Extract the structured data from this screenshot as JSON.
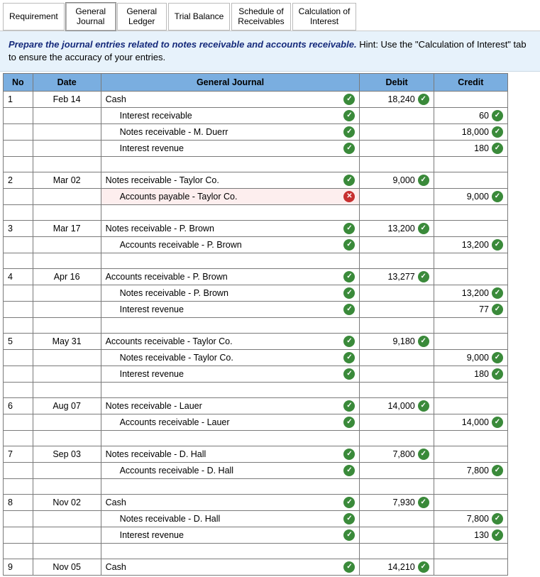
{
  "tabs": [
    {
      "label": "Requirement",
      "active": false
    },
    {
      "label": "General\nJournal",
      "active": true
    },
    {
      "label": "General\nLedger",
      "active": false
    },
    {
      "label": "Trial Balance",
      "active": false
    },
    {
      "label": "Schedule of\nReceivables",
      "active": false
    },
    {
      "label": "Calculation of\nInterest",
      "active": false
    }
  ],
  "instructions": {
    "bold": "Prepare the journal entries related to notes receivable and accounts receivable.",
    "rest": " Hint:  Use the \"Calculation of Interest\" tab to ensure the accuracy of your entries."
  },
  "headers": {
    "no": "No",
    "date": "Date",
    "journal": "General Journal",
    "debit": "Debit",
    "credit": "Credit"
  },
  "rows": [
    {
      "no": "1",
      "date": "Feb 14",
      "desc": "Cash",
      "indent": false,
      "status": "ok",
      "debit": "18,240",
      "debit_status": "ok",
      "credit": "",
      "credit_status": ""
    },
    {
      "no": "",
      "date": "",
      "desc": "Interest receivable",
      "indent": true,
      "status": "ok",
      "debit": "",
      "debit_status": "",
      "credit": "60",
      "credit_status": "ok"
    },
    {
      "no": "",
      "date": "",
      "desc": "Notes receivable - M. Duerr",
      "indent": true,
      "status": "ok",
      "debit": "",
      "debit_status": "",
      "credit": "18,000",
      "credit_status": "ok"
    },
    {
      "no": "",
      "date": "",
      "desc": "Interest revenue",
      "indent": true,
      "status": "ok",
      "debit": "",
      "debit_status": "",
      "credit": "180",
      "credit_status": "ok"
    },
    {
      "spacer": true
    },
    {
      "no": "2",
      "date": "Mar 02",
      "desc": "Notes receivable - Taylor Co.",
      "indent": false,
      "status": "ok",
      "debit": "9,000",
      "debit_status": "ok",
      "credit": "",
      "credit_status": ""
    },
    {
      "no": "",
      "date": "",
      "desc": "Accounts payable - Taylor Co.",
      "indent": true,
      "status": "err",
      "debit": "",
      "debit_status": "",
      "credit": "9,000",
      "credit_status": "ok",
      "rowError": true
    },
    {
      "spacer": true
    },
    {
      "no": "3",
      "date": "Mar 17",
      "desc": "Notes receivable - P. Brown",
      "indent": false,
      "status": "ok",
      "debit": "13,200",
      "debit_status": "ok",
      "credit": "",
      "credit_status": ""
    },
    {
      "no": "",
      "date": "",
      "desc": "Accounts receivable - P. Brown",
      "indent": true,
      "status": "ok",
      "debit": "",
      "debit_status": "",
      "credit": "13,200",
      "credit_status": "ok"
    },
    {
      "spacer": true
    },
    {
      "no": "4",
      "date": "Apr 16",
      "desc": "Accounts receivable - P. Brown",
      "indent": false,
      "status": "ok",
      "debit": "13,277",
      "debit_status": "ok",
      "credit": "",
      "credit_status": ""
    },
    {
      "no": "",
      "date": "",
      "desc": "Notes receivable - P. Brown",
      "indent": true,
      "status": "ok",
      "debit": "",
      "debit_status": "",
      "credit": "13,200",
      "credit_status": "ok"
    },
    {
      "no": "",
      "date": "",
      "desc": "Interest revenue",
      "indent": true,
      "status": "ok",
      "debit": "",
      "debit_status": "",
      "credit": "77",
      "credit_status": "ok"
    },
    {
      "spacer": true
    },
    {
      "no": "5",
      "date": "May 31",
      "desc": "Accounts receivable - Taylor Co.",
      "indent": false,
      "status": "ok",
      "debit": "9,180",
      "debit_status": "ok",
      "credit": "",
      "credit_status": ""
    },
    {
      "no": "",
      "date": "",
      "desc": "Notes receivable - Taylor Co.",
      "indent": true,
      "status": "ok",
      "debit": "",
      "debit_status": "",
      "credit": "9,000",
      "credit_status": "ok"
    },
    {
      "no": "",
      "date": "",
      "desc": "Interest revenue",
      "indent": true,
      "status": "ok",
      "debit": "",
      "debit_status": "",
      "credit": "180",
      "credit_status": "ok"
    },
    {
      "spacer": true
    },
    {
      "no": "6",
      "date": "Aug 07",
      "desc": "Notes receivable - Lauer",
      "indent": false,
      "status": "ok",
      "debit": "14,000",
      "debit_status": "ok",
      "credit": "",
      "credit_status": ""
    },
    {
      "no": "",
      "date": "",
      "desc": "Accounts receivable - Lauer",
      "indent": true,
      "status": "ok",
      "debit": "",
      "debit_status": "",
      "credit": "14,000",
      "credit_status": "ok"
    },
    {
      "spacer": true
    },
    {
      "no": "7",
      "date": "Sep 03",
      "desc": "Notes receivable - D. Hall",
      "indent": false,
      "status": "ok",
      "debit": "7,800",
      "debit_status": "ok",
      "credit": "",
      "credit_status": ""
    },
    {
      "no": "",
      "date": "",
      "desc": "Accounts receivable - D. Hall",
      "indent": true,
      "status": "ok",
      "debit": "",
      "debit_status": "",
      "credit": "7,800",
      "credit_status": "ok"
    },
    {
      "spacer": true
    },
    {
      "no": "8",
      "date": "Nov 02",
      "desc": "Cash",
      "indent": false,
      "status": "ok",
      "debit": "7,930",
      "debit_status": "ok",
      "credit": "",
      "credit_status": ""
    },
    {
      "no": "",
      "date": "",
      "desc": "Notes receivable - D. Hall",
      "indent": true,
      "status": "ok",
      "debit": "",
      "debit_status": "",
      "credit": "7,800",
      "credit_status": "ok"
    },
    {
      "no": "",
      "date": "",
      "desc": "Interest revenue",
      "indent": true,
      "status": "ok",
      "debit": "",
      "debit_status": "",
      "credit": "130",
      "credit_status": "ok"
    },
    {
      "spacer": true
    },
    {
      "no": "9",
      "date": "Nov 05",
      "desc": "Cash",
      "indent": false,
      "status": "ok",
      "debit": "14,210",
      "debit_status": "ok",
      "credit": "",
      "credit_status": ""
    }
  ],
  "colors": {
    "header_bg": "#7aaee0",
    "instruction_bg": "#e7f2fb",
    "ok": "#3a8a3a",
    "err": "#c73030"
  }
}
